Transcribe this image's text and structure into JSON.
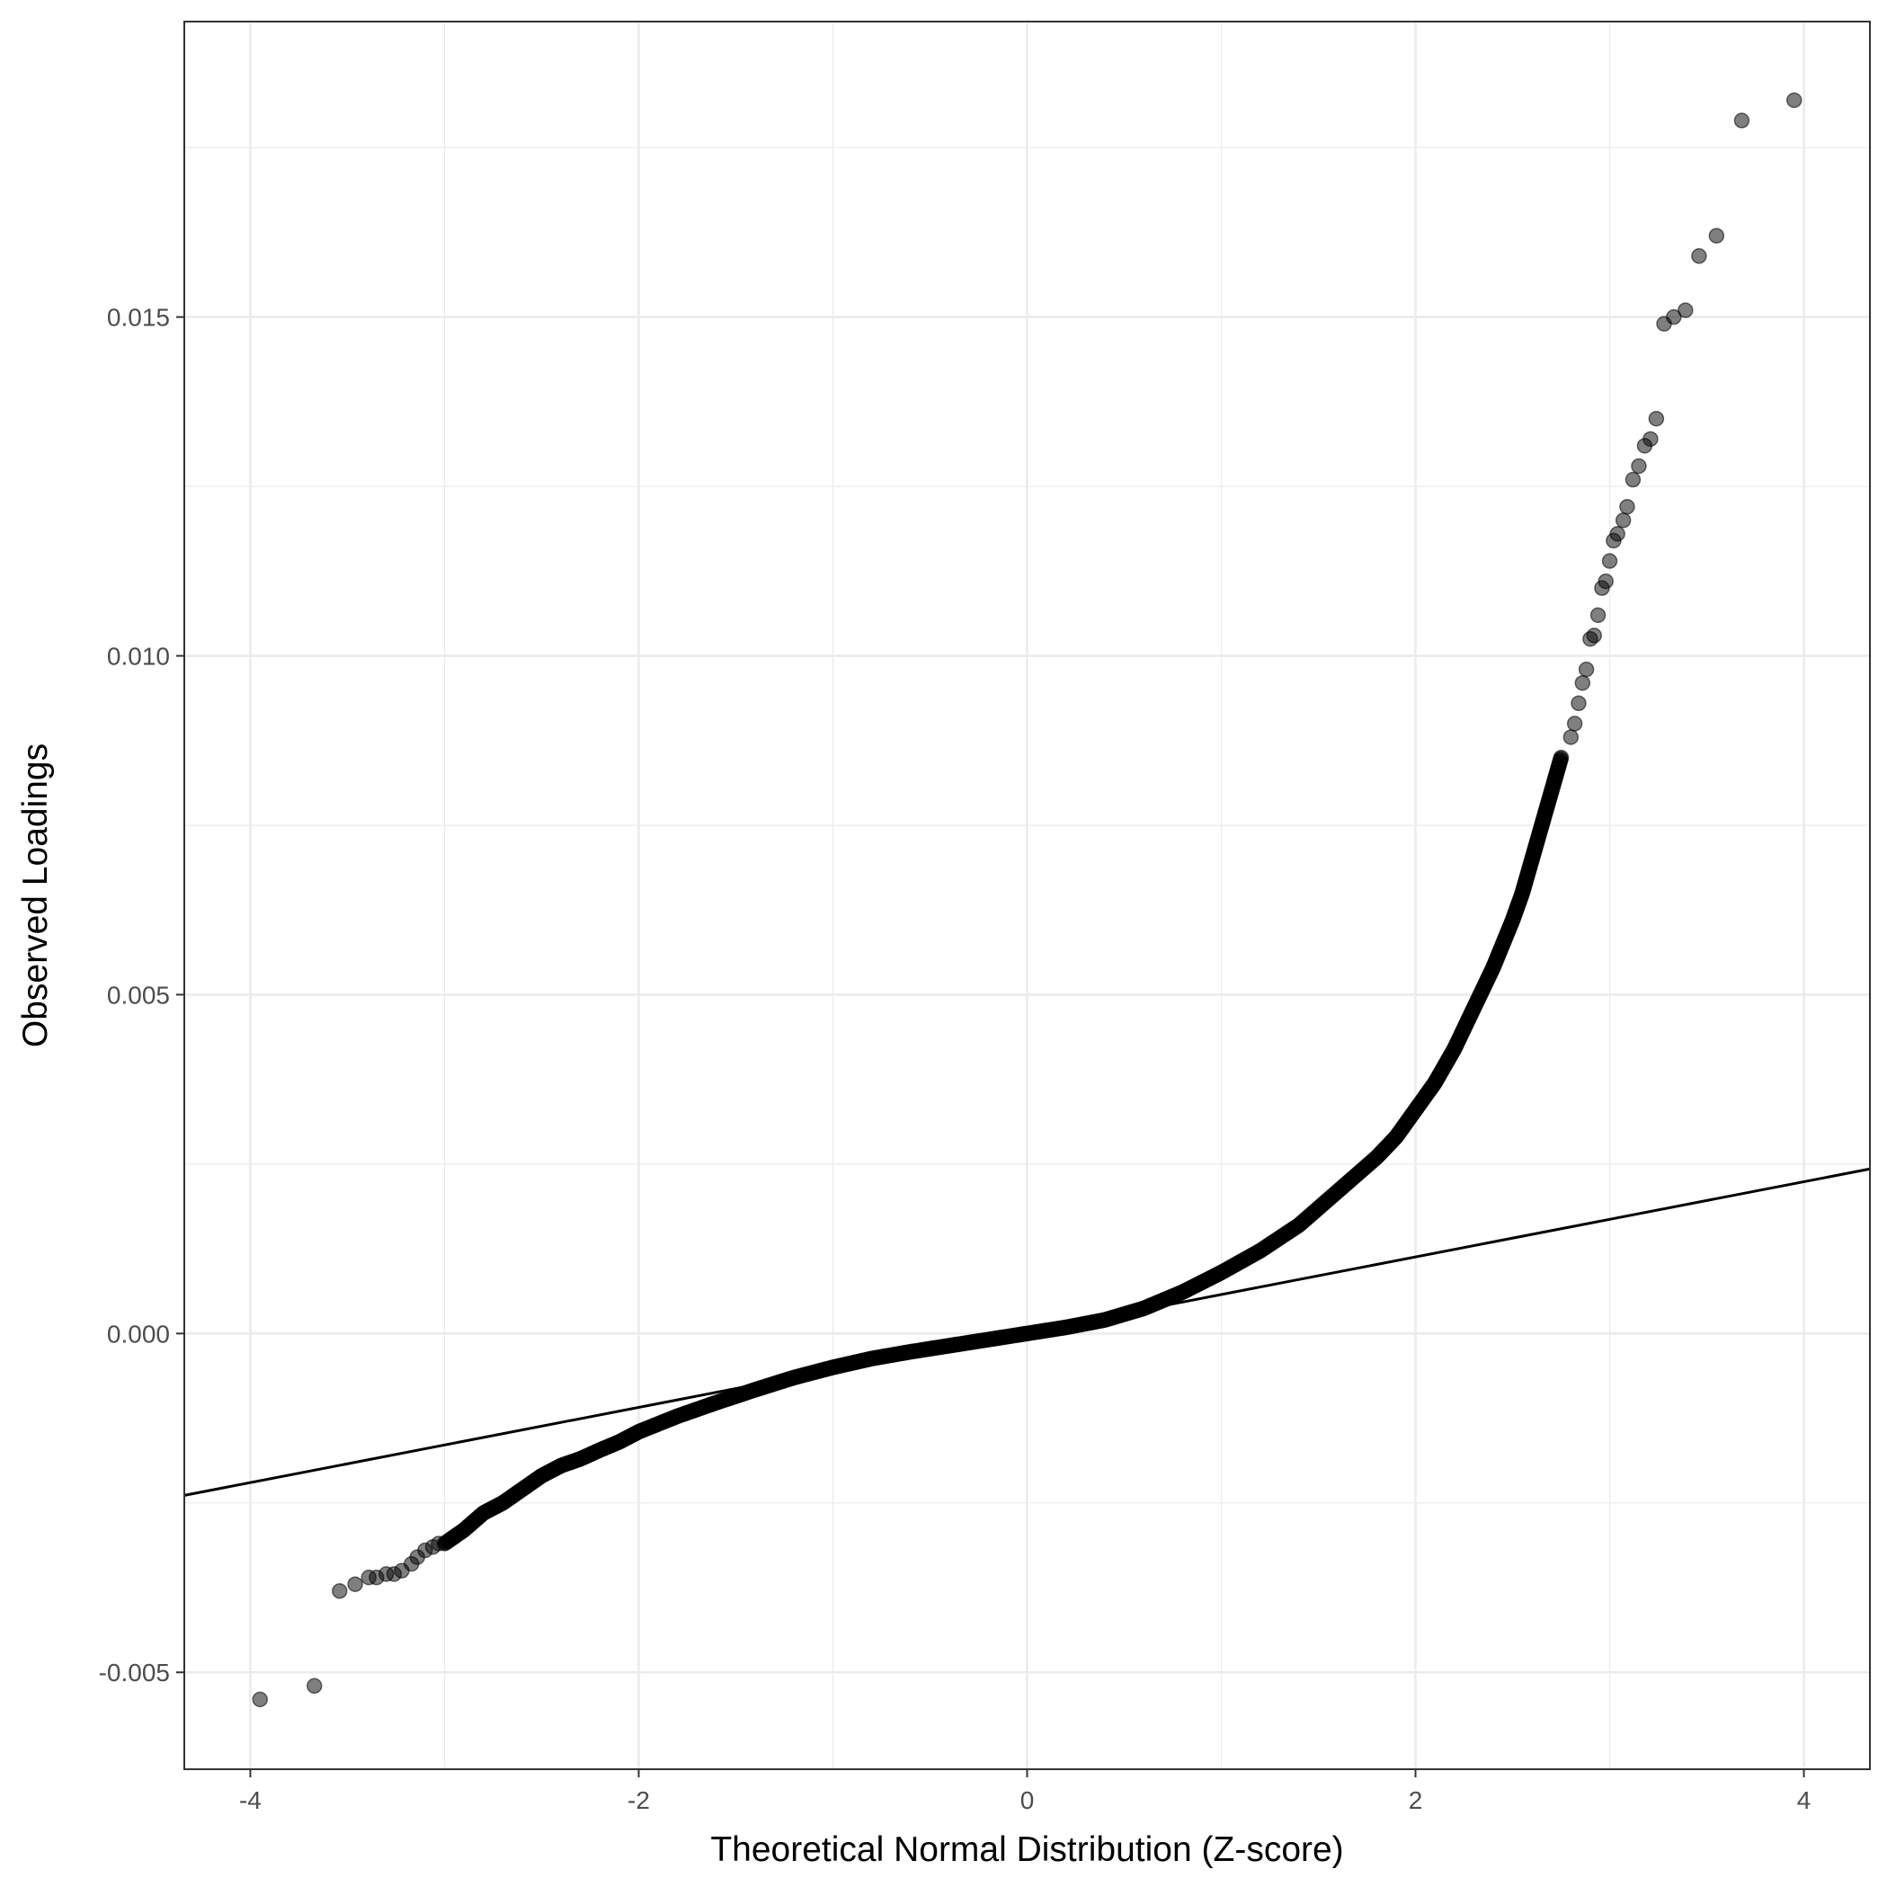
{
  "chart_data": {
    "type": "scatter",
    "title": "",
    "xlabel": "Theoretical Normal Distribution (Z-score)",
    "ylabel": "Observed Loadings",
    "xlim": [
      -4.34,
      4.34
    ],
    "ylim": [
      -0.00643,
      0.01936
    ],
    "x_ticks": [
      -4,
      -2,
      0,
      2,
      4
    ],
    "x_tick_labels": [
      "-4",
      "-2",
      "0",
      "2",
      "4"
    ],
    "y_ticks": [
      -0.005,
      0.0,
      0.005,
      0.01,
      0.015
    ],
    "y_tick_labels": [
      "-0.005",
      "0.000",
      "0.005",
      "0.010",
      "0.015"
    ],
    "grid": true,
    "legend": "none",
    "reference_line": {
      "slope": 0.000555,
      "intercept": 2e-05
    },
    "curve_points": {
      "x": [
        -3.0,
        -2.9,
        -2.8,
        -2.7,
        -2.6,
        -2.5,
        -2.4,
        -2.3,
        -2.2,
        -2.1,
        -2.0,
        -1.8,
        -1.6,
        -1.4,
        -1.2,
        -1.0,
        -0.8,
        -0.6,
        -0.4,
        -0.2,
        0.0,
        0.2,
        0.4,
        0.6,
        0.8,
        1.0,
        1.2,
        1.4,
        1.6,
        1.8,
        1.9,
        2.0,
        2.1,
        2.2,
        2.3,
        2.4,
        2.5,
        2.55,
        2.6,
        2.65,
        2.7,
        2.75
      ],
      "y": [
        -0.0031,
        -0.0029,
        -0.00265,
        -0.0025,
        -0.0023,
        -0.0021,
        -0.00195,
        -0.00185,
        -0.00172,
        -0.0016,
        -0.00145,
        -0.00122,
        -0.00102,
        -0.00083,
        -0.00065,
        -0.0005,
        -0.00037,
        -0.00027,
        -0.00018,
        -9e-05,
        0.0,
        9e-05,
        0.0002,
        0.00037,
        0.00061,
        0.0009,
        0.00122,
        0.0016,
        0.0021,
        0.0026,
        0.0029,
        0.0033,
        0.0037,
        0.0042,
        0.0048,
        0.0054,
        0.0061,
        0.0065,
        0.007,
        0.0075,
        0.008,
        0.0085
      ]
    },
    "points": {
      "x": [
        -3.95,
        -3.67,
        -3.54,
        -3.46,
        -3.39,
        -3.35,
        -3.3,
        -3.26,
        -3.22,
        -3.17,
        -3.14,
        -3.1,
        -3.06,
        -3.03,
        2.8,
        2.82,
        2.84,
        2.86,
        2.88,
        2.9,
        2.92,
        2.94,
        2.96,
        2.98,
        3.0,
        3.02,
        3.04,
        3.07,
        3.09,
        3.12,
        3.15,
        3.18,
        3.21,
        3.24,
        3.28,
        3.33,
        3.39,
        3.46,
        3.55,
        3.68,
        3.95
      ],
      "y": [
        -0.0054,
        -0.0052,
        -0.0038,
        -0.0037,
        -0.0036,
        -0.0036,
        -0.00355,
        -0.00355,
        -0.0035,
        -0.0034,
        -0.0033,
        -0.0032,
        -0.00315,
        -0.0031,
        0.0088,
        0.009,
        0.0093,
        0.0096,
        0.0098,
        0.01025,
        0.0103,
        0.0106,
        0.011,
        0.0111,
        0.0114,
        0.0117,
        0.0118,
        0.012,
        0.0122,
        0.0126,
        0.0128,
        0.0131,
        0.0132,
        0.0135,
        0.0149,
        0.015,
        0.0151,
        0.0159,
        0.0162,
        0.0179,
        0.0182
      ]
    }
  }
}
